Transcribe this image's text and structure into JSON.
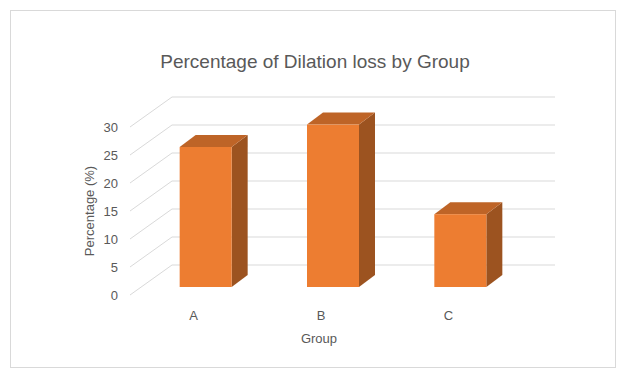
{
  "chart_data": {
    "type": "bar",
    "title": "Percentage of Dilation loss by Group",
    "categories": [
      "A",
      "B",
      "C"
    ],
    "values": [
      25,
      29,
      13
    ],
    "color": "#ed7d31",
    "x_label": "Group",
    "y_label": "Percentage (%)",
    "ylim": [
      0,
      30
    ],
    "yticks": [
      0,
      5,
      10,
      15,
      20,
      25,
      30
    ],
    "grid": true
  }
}
